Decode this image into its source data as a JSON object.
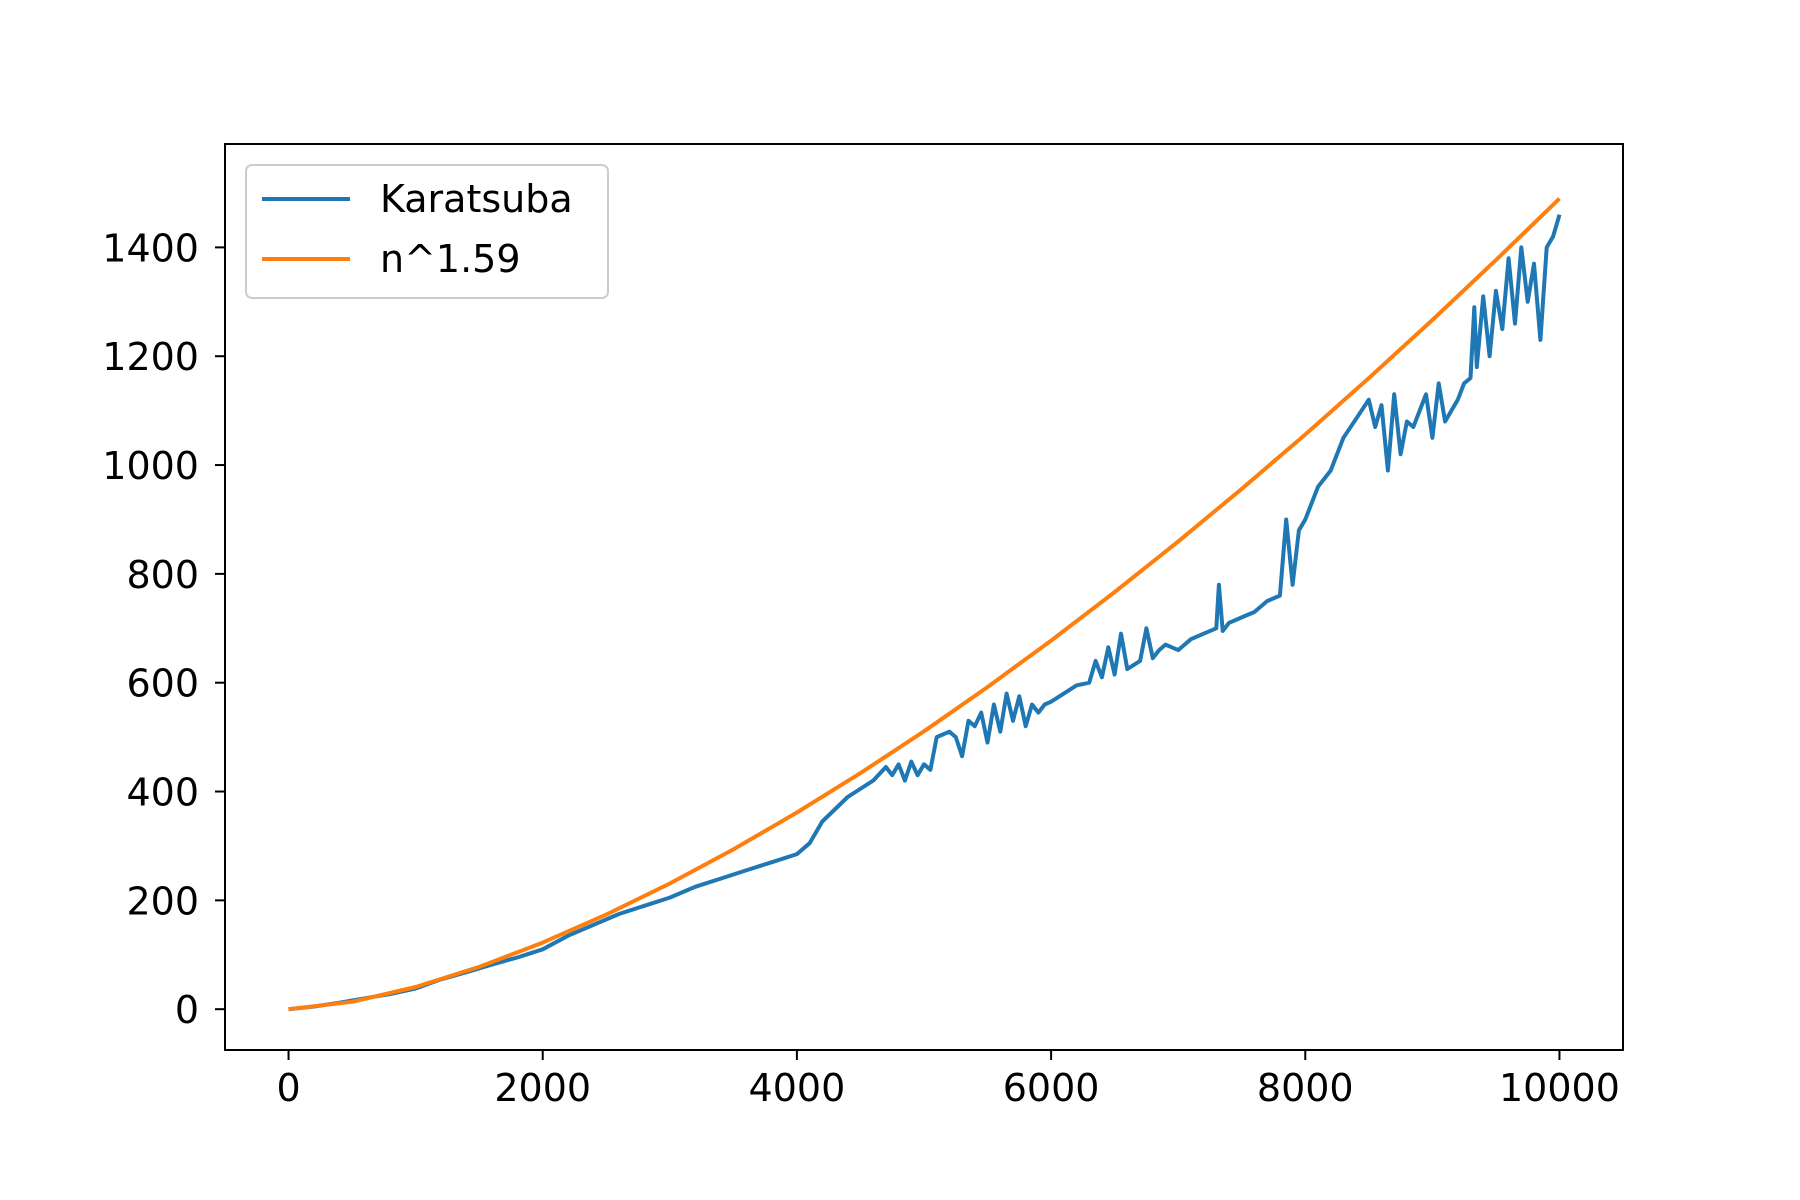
{
  "chart_data": {
    "type": "line",
    "title": "",
    "xlabel": "",
    "ylabel": "",
    "xlim": [
      -500,
      10500
    ],
    "ylim": [
      -75,
      1590
    ],
    "x_ticks": [
      0,
      2000,
      4000,
      6000,
      8000,
      10000
    ],
    "y_ticks": [
      0,
      200,
      400,
      600,
      800,
      1000,
      1200,
      1400
    ],
    "grid": false,
    "legend_position": "top-left",
    "series": [
      {
        "name": "Karatsuba",
        "color": "#1f77b4",
        "x": [
          0,
          200,
          400,
          600,
          800,
          1000,
          1200,
          1400,
          1600,
          1800,
          2000,
          2200,
          2400,
          2600,
          2800,
          3000,
          3200,
          3400,
          3600,
          3800,
          4000,
          4100,
          4200,
          4400,
          4600,
          4700,
          4750,
          4800,
          4850,
          4900,
          4950,
          5000,
          5050,
          5100,
          5150,
          5200,
          5250,
          5300,
          5350,
          5400,
          5450,
          5500,
          5550,
          5600,
          5650,
          5700,
          5750,
          5800,
          5850,
          5900,
          5950,
          6000,
          6100,
          6200,
          6300,
          6350,
          6400,
          6450,
          6500,
          6550,
          6600,
          6700,
          6750,
          6800,
          6850,
          6900,
          6950,
          7000,
          7100,
          7200,
          7300,
          7320,
          7350,
          7400,
          7450,
          7500,
          7600,
          7700,
          7800,
          7850,
          7900,
          7950,
          8000,
          8100,
          8200,
          8300,
          8400,
          8500,
          8550,
          8600,
          8650,
          8700,
          8750,
          8800,
          8850,
          8900,
          8950,
          9000,
          9050,
          9100,
          9150,
          9200,
          9250,
          9300,
          9330,
          9350,
          9400,
          9450,
          9500,
          9550,
          9600,
          9650,
          9700,
          9750,
          9800,
          9850,
          9900,
          9950,
          10000
        ],
        "y": [
          0,
          5,
          12,
          20,
          28,
          38,
          55,
          68,
          82,
          95,
          110,
          135,
          155,
          175,
          190,
          205,
          225,
          240,
          255,
          270,
          285,
          305,
          345,
          390,
          420,
          445,
          430,
          450,
          420,
          455,
          430,
          450,
          440,
          500,
          505,
          510,
          500,
          465,
          530,
          520,
          545,
          490,
          560,
          510,
          580,
          530,
          575,
          520,
          560,
          545,
          560,
          565,
          580,
          595,
          600,
          640,
          610,
          665,
          615,
          690,
          625,
          640,
          700,
          645,
          660,
          670,
          665,
          660,
          680,
          690,
          700,
          780,
          695,
          710,
          715,
          720,
          730,
          750,
          760,
          900,
          780,
          880,
          900,
          960,
          990,
          1050,
          1085,
          1120,
          1070,
          1110,
          990,
          1130,
          1020,
          1080,
          1070,
          1100,
          1130,
          1050,
          1150,
          1080,
          1100,
          1120,
          1150,
          1160,
          1290,
          1180,
          1310,
          1200,
          1320,
          1250,
          1380,
          1260,
          1400,
          1300,
          1370,
          1230,
          1400,
          1420,
          1460
        ]
      },
      {
        "name": "n^1.59",
        "color": "#ff7f0e",
        "x": [
          0,
          500,
          1000,
          1500,
          2000,
          2500,
          3000,
          3500,
          4000,
          4500,
          5000,
          5500,
          6000,
          6500,
          7000,
          7500,
          8000,
          8500,
          9000,
          9500,
          10000
        ],
        "y": [
          0,
          13.6,
          40.7,
          77.8,
          122.4,
          173.8,
          231.0,
          293.7,
          361.4,
          433.8,
          510.7,
          592.0,
          677.3,
          766.5,
          859.5,
          956.1,
          1056.2,
          1159.7,
          1266.6,
          1376.6,
          1489.7
        ]
      }
    ]
  }
}
